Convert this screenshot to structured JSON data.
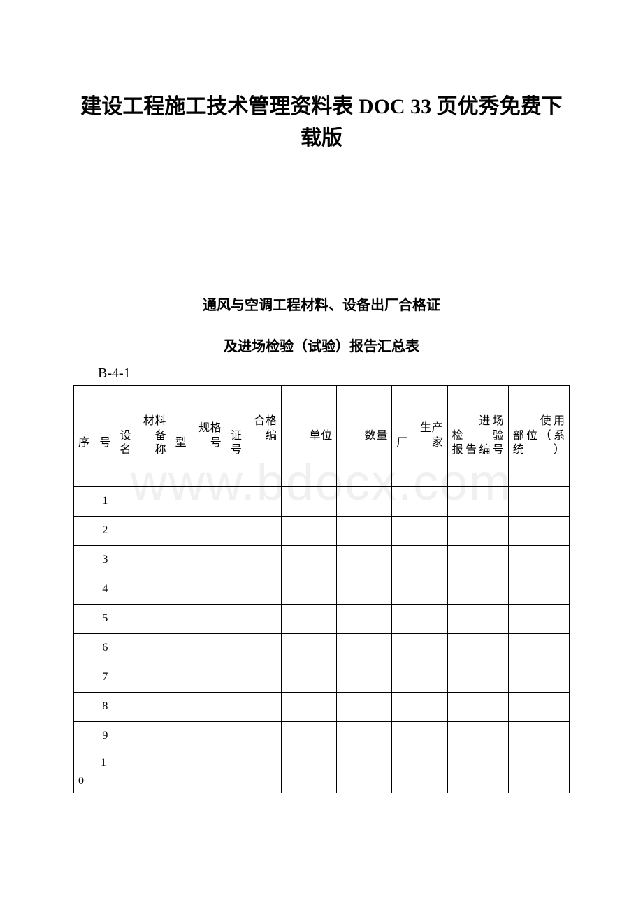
{
  "watermark": "www.bdocx.com",
  "main_title": "建设工程施工技术管理资料表 DOC 33 页优秀免费下载版",
  "subtitle_1": "通风与空调工程材料、设备出厂合格证",
  "subtitle_2": "及进场检验（试验）报告汇总表",
  "table_code": "B-4-1",
  "table": {
    "columns": [
      "　　序号",
      "　　材料设　　备名称",
      "　　规格型号",
      "　　合格证　　编号",
      "　　单位",
      "　　数量",
      "　　生产厂家",
      "　　进场检验　　报告编号",
      "　　使用部位（系统）"
    ],
    "rows": [
      "1",
      "2",
      "3",
      "4",
      "5",
      "6",
      "7",
      "8",
      "9",
      "10"
    ]
  },
  "colors": {
    "background": "#ffffff",
    "text": "#000000",
    "border": "#000000",
    "watermark": "#f0f0f0"
  }
}
